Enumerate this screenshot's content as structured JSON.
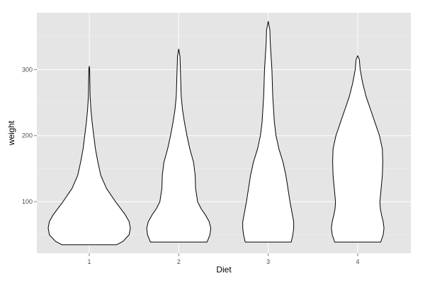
{
  "chart_data": {
    "type": "violin",
    "xlabel": "Diet",
    "ylabel": "weight",
    "categories": [
      "1",
      "2",
      "3",
      "4"
    ],
    "ylim": [
      22,
      386
    ],
    "yticks": [
      100,
      200,
      300
    ],
    "grid": true,
    "colors": {
      "panel": "#e5e5e5",
      "grid_major": "#ffffff",
      "violin_fill": "#ffffff",
      "violin_stroke": "#000000"
    },
    "series": [
      {
        "category": "1",
        "min": 35,
        "max": 305,
        "profile": [
          [
            35,
            0.67
          ],
          [
            40,
            0.82
          ],
          [
            50,
            0.97
          ],
          [
            60,
            1.0
          ],
          [
            70,
            0.97
          ],
          [
            80,
            0.88
          ],
          [
            90,
            0.76
          ],
          [
            100,
            0.64
          ],
          [
            120,
            0.42
          ],
          [
            140,
            0.28
          ],
          [
            160,
            0.21
          ],
          [
            180,
            0.15
          ],
          [
            200,
            0.11
          ],
          [
            220,
            0.07
          ],
          [
            240,
            0.04
          ],
          [
            260,
            0.02
          ],
          [
            280,
            0.015
          ],
          [
            300,
            0.01
          ],
          [
            305,
            0.0
          ]
        ]
      },
      {
        "category": "2",
        "min": 39,
        "max": 331,
        "profile": [
          [
            39,
            0.69
          ],
          [
            50,
            0.76
          ],
          [
            60,
            0.78
          ],
          [
            70,
            0.74
          ],
          [
            80,
            0.65
          ],
          [
            90,
            0.54
          ],
          [
            100,
            0.46
          ],
          [
            120,
            0.41
          ],
          [
            140,
            0.4
          ],
          [
            160,
            0.36
          ],
          [
            180,
            0.27
          ],
          [
            200,
            0.2
          ],
          [
            220,
            0.14
          ],
          [
            240,
            0.09
          ],
          [
            260,
            0.06
          ],
          [
            280,
            0.05
          ],
          [
            300,
            0.04
          ],
          [
            320,
            0.03
          ],
          [
            331,
            0.0
          ]
        ]
      },
      {
        "category": "3",
        "min": 39,
        "max": 373,
        "profile": [
          [
            39,
            0.56
          ],
          [
            50,
            0.6
          ],
          [
            60,
            0.62
          ],
          [
            70,
            0.62
          ],
          [
            80,
            0.59
          ],
          [
            100,
            0.53
          ],
          [
            120,
            0.48
          ],
          [
            140,
            0.43
          ],
          [
            160,
            0.36
          ],
          [
            180,
            0.26
          ],
          [
            200,
            0.19
          ],
          [
            220,
            0.15
          ],
          [
            240,
            0.13
          ],
          [
            260,
            0.11
          ],
          [
            280,
            0.1
          ],
          [
            300,
            0.09
          ],
          [
            320,
            0.07
          ],
          [
            340,
            0.05
          ],
          [
            360,
            0.04
          ],
          [
            373,
            0.0
          ]
        ]
      },
      {
        "category": "4",
        "min": 39,
        "max": 321,
        "profile": [
          [
            39,
            0.56
          ],
          [
            50,
            0.62
          ],
          [
            60,
            0.64
          ],
          [
            70,
            0.62
          ],
          [
            80,
            0.58
          ],
          [
            90,
            0.55
          ],
          [
            100,
            0.54
          ],
          [
            120,
            0.57
          ],
          [
            140,
            0.6
          ],
          [
            160,
            0.61
          ],
          [
            180,
            0.6
          ],
          [
            200,
            0.53
          ],
          [
            220,
            0.42
          ],
          [
            240,
            0.31
          ],
          [
            260,
            0.2
          ],
          [
            280,
            0.12
          ],
          [
            300,
            0.06
          ],
          [
            315,
            0.04
          ],
          [
            321,
            0.0
          ]
        ]
      }
    ]
  }
}
